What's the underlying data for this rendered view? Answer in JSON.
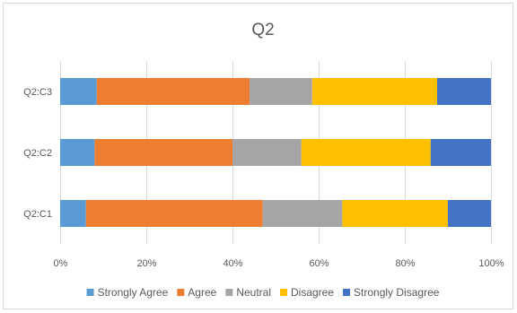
{
  "chart_data": {
    "type": "bar",
    "orientation": "horizontal",
    "stacked": "percent",
    "title": "Q2",
    "categories": [
      "Q2:C1",
      "Q2:C2",
      "Q2:C3"
    ],
    "series": [
      {
        "name": "Strongly Agree",
        "color": "#5b9bd5",
        "values": [
          6,
          8,
          8.5
        ]
      },
      {
        "name": "Agree",
        "color": "#ed7d31",
        "values": [
          41,
          32,
          35.5
        ]
      },
      {
        "name": "Neutral",
        "color": "#a5a5a5",
        "values": [
          18.5,
          16,
          14.5
        ]
      },
      {
        "name": "Disagree",
        "color": "#ffc000",
        "values": [
          24.5,
          30,
          29
        ]
      },
      {
        "name": "Strongly Disagree",
        "color": "#4472c4",
        "values": [
          10,
          14,
          12.5
        ]
      }
    ],
    "xlim": [
      0,
      100
    ],
    "x_ticks": [
      "0%",
      "20%",
      "40%",
      "60%",
      "80%",
      "100%"
    ],
    "grid": "vertical",
    "legend_position": "bottom"
  }
}
